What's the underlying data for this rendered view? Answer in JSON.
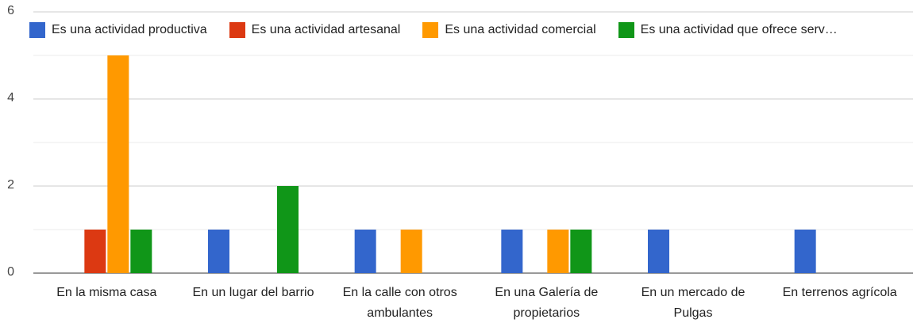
{
  "chart_data": {
    "type": "bar",
    "categories": [
      "En la misma casa",
      "En un lugar del barrio",
      "En la calle con otros ambulantes",
      "En una Galería de propietarios",
      "En un mercado de Pulgas",
      "En terrenos agrícola"
    ],
    "series": [
      {
        "name": "Es una actividad productiva",
        "color": "#3366cc",
        "values": [
          0,
          1,
          1,
          1,
          1,
          1
        ]
      },
      {
        "name": "Es una actividad artesanal",
        "color": "#dc3912",
        "values": [
          1,
          0,
          0,
          0,
          0,
          0
        ]
      },
      {
        "name": "Es una actividad comercial",
        "color": "#ff9900",
        "values": [
          5,
          0,
          1,
          1,
          0,
          0
        ]
      },
      {
        "name": "Es una actividad que ofrece serv…",
        "color": "#109618",
        "values": [
          1,
          2,
          0,
          1,
          0,
          0
        ]
      }
    ],
    "ylim": [
      0,
      6
    ],
    "yticks": [
      0,
      2,
      4,
      6
    ],
    "minor_yticks": [
      1,
      3,
      5
    ],
    "grid": true,
    "legend": "top"
  }
}
